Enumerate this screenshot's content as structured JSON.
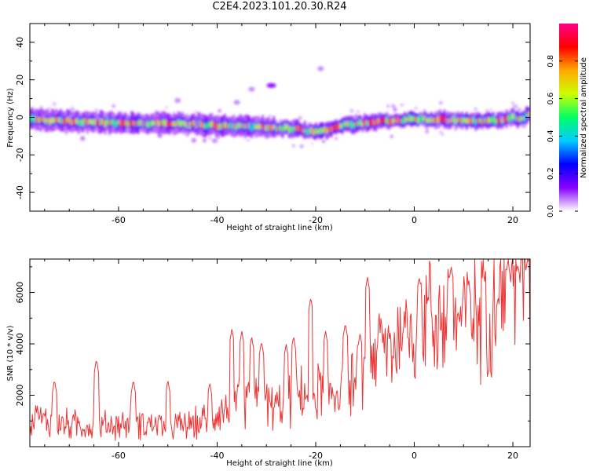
{
  "title": "C2E4.2023.101.20.30.R24",
  "chart_data": [
    {
      "type": "heatmap",
      "xlabel": "Height of straight line (km)",
      "ylabel": "Frequency (Hz)",
      "xlim": [
        -78,
        23.5
      ],
      "ylim": [
        -50,
        50
      ],
      "xticks": [
        "-60",
        "-40",
        "-20",
        "0",
        "20"
      ],
      "xtick_values": [
        -60,
        -40,
        -20,
        0,
        20
      ],
      "yticks": [
        "40",
        "20",
        "0",
        "-20",
        "-40"
      ],
      "ytick_values": [
        40,
        20,
        0,
        -20,
        -40
      ],
      "colorbar": {
        "label": "Normalized spectral amplitude",
        "range": [
          0,
          1
        ],
        "ticks": [
          "0.0",
          "0.2",
          "0.4",
          "0.6",
          "0.8"
        ],
        "tick_values": [
          0.0,
          0.2,
          0.4,
          0.6,
          0.8
        ],
        "colormap": [
          "#ffffff",
          "#8800ff",
          "#0000ff",
          "#00ccff",
          "#00ff66",
          "#ccff00",
          "#ffaa00",
          "#ff0000",
          "#ff0088"
        ]
      },
      "ridge_center_hz": {
        "x": [
          -78,
          -70,
          -60,
          -50,
          -42,
          -36,
          -30,
          -25,
          -22,
          -20,
          -17,
          -14,
          -10,
          -5,
          0,
          5,
          10,
          15,
          20,
          22,
          23.5
        ],
        "y": [
          -1,
          -2,
          -3,
          -3,
          -4,
          -5,
          -5,
          -6,
          -7,
          -8,
          -6,
          -4,
          -3,
          -2,
          -1,
          -1,
          -2,
          -2,
          0,
          -1,
          3
        ]
      },
      "secondary_blobs": [
        {
          "x": -29,
          "y": 17
        },
        {
          "x": -33,
          "y": 15
        },
        {
          "x": -48,
          "y": 9
        },
        {
          "x": -36,
          "y": 8
        },
        {
          "x": -19,
          "y": 26
        }
      ]
    },
    {
      "type": "line",
      "xlabel": "Height of straight line (km)",
      "ylabel": "SNR (10 * v/v)",
      "xlim": [
        -78,
        23.5
      ],
      "ylim": [
        0,
        7300
      ],
      "xticks": [
        "-60",
        "-40",
        "-20",
        "0",
        "20"
      ],
      "xtick_values": [
        -60,
        -40,
        -20,
        0,
        20
      ],
      "yticks": [
        "2000",
        "4000",
        "6000"
      ],
      "ytick_values": [
        2000,
        4000,
        6000
      ],
      "color": "#ee3333",
      "series": [
        {
          "trend_x": [
            -78,
            -72,
            -66,
            -60,
            -54,
            -48,
            -44,
            -40,
            -36,
            -32,
            -28,
            -24,
            -20,
            -16,
            -13,
            -10,
            -9,
            -8,
            -5,
            -2,
            0,
            3,
            6,
            10,
            14,
            18,
            21,
            23.5
          ],
          "trend_y": [
            1100,
            900,
            800,
            850,
            900,
            800,
            900,
            1300,
            1700,
            1800,
            1500,
            1900,
            2200,
            2200,
            2300,
            2700,
            3900,
            3600,
            3900,
            4300,
            4700,
            5000,
            5000,
            4900,
            5300,
            5900,
            6300,
            6700
          ],
          "peak_x": [
            -76.5,
            -73,
            -64.5,
            -57,
            -50,
            -41.5,
            -37,
            -35,
            -33,
            -31,
            -26,
            -24.5,
            -21,
            -18,
            -14,
            -11,
            -9.5,
            -7,
            -2,
            1,
            3,
            7.5,
            11,
            14,
            17,
            19,
            21,
            23
          ],
          "peak_y": [
            1500,
            2600,
            3400,
            2600,
            2600,
            2500,
            4600,
            4500,
            4300,
            4100,
            4000,
            4300,
            5800,
            4500,
            4800,
            4400,
            6600,
            4500,
            4800,
            6600,
            5800,
            7000,
            6400,
            6800,
            5800,
            7200,
            7100,
            7300
          ]
        }
      ]
    }
  ]
}
